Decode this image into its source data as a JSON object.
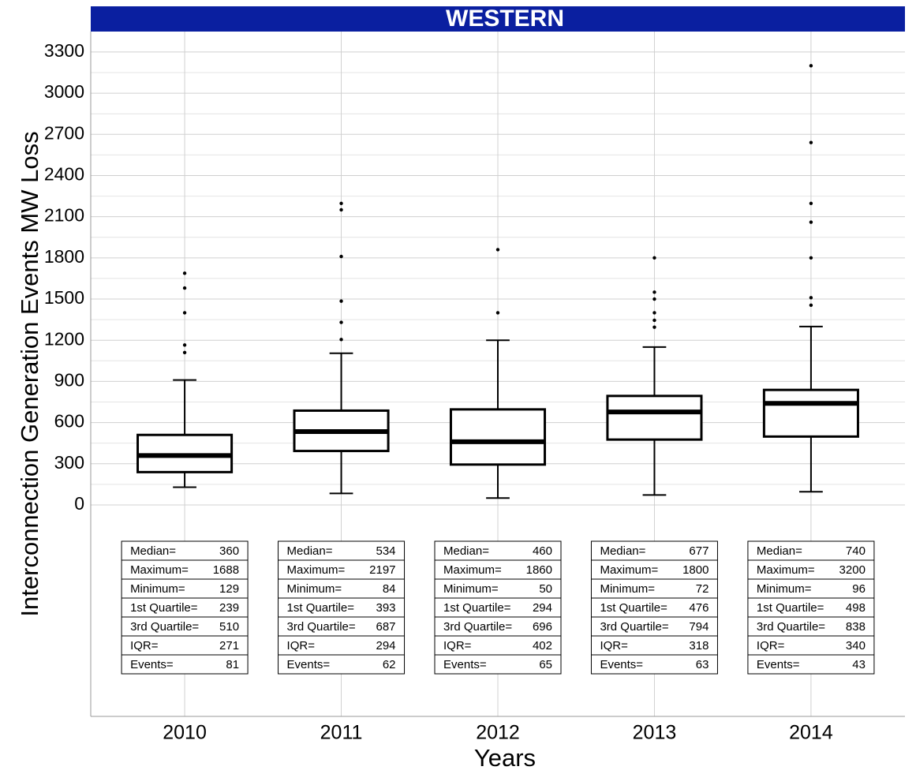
{
  "chart_data": {
    "type": "box",
    "title": "WESTERN",
    "y_label": "Interconnection Generation Events MW Loss",
    "x_label": "Years",
    "categories": [
      "2010",
      "2011",
      "2012",
      "2013",
      "2014"
    ],
    "ylim": [
      -1541,
      3449
    ],
    "yticks": [
      0,
      300,
      600,
      900,
      1200,
      1500,
      1800,
      2100,
      2400,
      2700,
      3000,
      3300
    ],
    "grid": true,
    "title_color": "#0a1fa0",
    "box_color": "#000000",
    "stat_labels": {
      "median": "Median=",
      "max": "Maximum=",
      "min": "Minimum=",
      "q1": "1st Quartile=",
      "q3": "3rd Quartile=",
      "iqr": "IQR=",
      "events": "Events="
    },
    "boxes": [
      {
        "median": 360,
        "max": 1688,
        "min": 129,
        "q1": 239,
        "q3": 510,
        "iqr": 271,
        "events": 81,
        "whisker_high": 910,
        "outliers": [
          1580,
          1400,
          1165,
          1110
        ]
      },
      {
        "median": 534,
        "max": 2197,
        "min": 84,
        "q1": 393,
        "q3": 687,
        "iqr": 294,
        "events": 62,
        "whisker_high": 1105,
        "outliers": [
          2150,
          1810,
          1485,
          1330,
          1205
        ]
      },
      {
        "median": 460,
        "max": 1860,
        "min": 50,
        "q1": 294,
        "q3": 696,
        "iqr": 402,
        "events": 65,
        "whisker_high": 1200,
        "outliers": [
          1400
        ]
      },
      {
        "median": 677,
        "max": 1800,
        "min": 72,
        "q1": 476,
        "q3": 794,
        "iqr": 318,
        "events": 63,
        "whisker_high": 1150,
        "outliers": [
          1550,
          1500,
          1400,
          1345,
          1295
        ]
      },
      {
        "median": 740,
        "max": 3200,
        "min": 96,
        "q1": 498,
        "q3": 838,
        "iqr": 340,
        "events": 43,
        "whisker_high": 1300,
        "outliers": [
          2640,
          2197,
          2060,
          1800,
          1510,
          1455
        ]
      }
    ]
  }
}
